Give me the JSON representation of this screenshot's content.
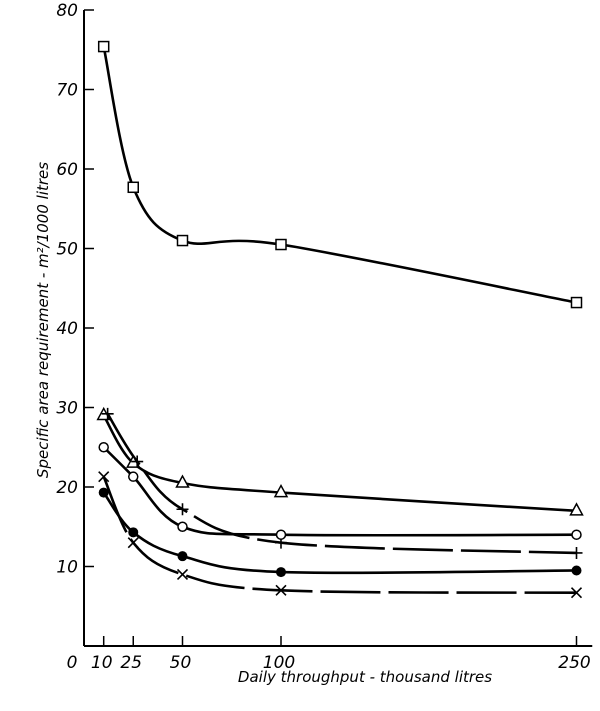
{
  "chart_data": {
    "type": "line",
    "title": "",
    "xlabel": "Daily throughput - thousand litres",
    "ylabel": "Specific area requirement - m²/1000 litres",
    "xlim": [
      0,
      260
    ],
    "ylim": [
      0,
      80
    ],
    "x_ticks": [
      "0",
      "10",
      "25",
      "50",
      "100",
      "250"
    ],
    "x_tick_values": [
      0,
      10,
      25,
      50,
      100,
      250
    ],
    "y_ticks": [
      "10",
      "20",
      "30",
      "40",
      "50",
      "60",
      "70",
      "80"
    ],
    "y_tick_values": [
      10,
      20,
      30,
      40,
      50,
      60,
      70,
      80
    ],
    "grid": false,
    "legend": "none",
    "series": [
      {
        "marker": "open-square",
        "x": [
          10,
          25,
          50,
          100,
          250
        ],
        "y": [
          75.4,
          57.7,
          51.0,
          50.5,
          43.2
        ]
      },
      {
        "marker": "open-triangle",
        "x": [
          10,
          25,
          50,
          100,
          250
        ],
        "y": [
          29.0,
          23.0,
          20.5,
          19.3,
          17.0
        ]
      },
      {
        "marker": "plus",
        "x": [
          12,
          27,
          50,
          100,
          250
        ],
        "y": [
          29.2,
          23.2,
          17.2,
          13.0,
          11.7
        ]
      },
      {
        "marker": "open-circle",
        "x": [
          10,
          25,
          50,
          100,
          250
        ],
        "y": [
          25.0,
          21.3,
          15.0,
          14.0,
          14.0
        ]
      },
      {
        "marker": "filled-circle",
        "x": [
          10,
          25,
          50,
          100,
          250
        ],
        "y": [
          19.3,
          14.3,
          11.3,
          9.3,
          9.5
        ]
      },
      {
        "marker": "cross",
        "x": [
          10,
          25,
          50,
          100,
          250
        ],
        "y": [
          21.3,
          13.0,
          9.0,
          7.0,
          6.7
        ]
      }
    ]
  }
}
